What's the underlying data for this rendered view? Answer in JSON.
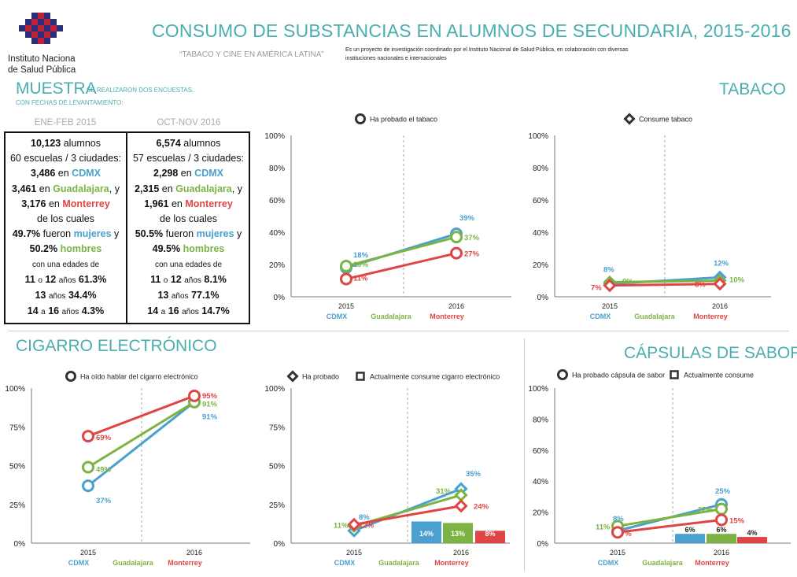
{
  "header": {
    "title": "CONSUMO DE SUBSTANCIAS EN ALUMNOS DE SECUNDARIA, 2015-2016",
    "subtitle": "“TABACO Y CINE EN AMÉRICA LATINA”",
    "about": "Es un proyecto de investigación coordinado por el Instituto Nacional de Salud Pública, en colaboración con diversas instituciones nacionales e internacionales",
    "logo_line1": "Instituto Naciona",
    "logo_line2": "de Salud Pública"
  },
  "colors": {
    "teal": "#4aaeb0",
    "cdmx": "#4aa0cf",
    "guadalajara": "#7cb342",
    "monterrey": "#e04545"
  },
  "muestra": {
    "title": "MUESTRA",
    "note1": "SE REALIZARON DOS ENCUESTAS,",
    "note2": "CON FECHAS DE LEVANTAMIENTO:",
    "period1": "ENE-FEB 2015",
    "period2": "OCT-NOV 2016",
    "col1": {
      "alumnos_n": "10,123",
      "alumnos_w": "alumnos",
      "escuelas": "60 escuelas / 3 ciudades:",
      "cdmx_n": "3,486",
      "en": "en",
      "cdmx": "CDMX",
      "gdl_n": "3,461",
      "gdl": "Guadalajara",
      "y": ", y",
      "mty_n": "3,176",
      "mty": "Monterrey",
      "de_los_cuales": "de los cuales",
      "mujeres_pct": "49.7%",
      "fueron": "fueron",
      "mujeres": "mujeres",
      "y2": "y",
      "hombres_pct": "50.2%",
      "hombres": "hombres",
      "con_edades": "con una edades de",
      "e1a": "11",
      "o": "o",
      "e1b": "12",
      "anos": "años",
      "e1pct": "61.3%",
      "e2": "13",
      "e2pct": "34.4%",
      "e3a": "14",
      "a": "a",
      "e3b": "16",
      "e3pct": "4.3%"
    },
    "col2": {
      "alumnos_n": "6,574",
      "alumnos_w": "alumnos",
      "escuelas": "57 escuelas / 3 ciudades:",
      "cdmx_n": "2,298",
      "en": "en",
      "cdmx": "CDMX",
      "gdl_n": "2,315",
      "gdl": "Guadalajara",
      "y": ", y",
      "mty_n": "1,961",
      "mty": "Monterrey",
      "de_los_cuales": "de los cuales",
      "mujeres_pct": "50.5%",
      "fueron": "fueron",
      "mujeres": "mujeres",
      "y2": "y",
      "hombres_pct": "49.5%",
      "hombres": "hombres",
      "con_edades": "con una edades de",
      "e1a": "11",
      "o": "o",
      "e1b": "12",
      "anos": "años",
      "e1pct": "8.1%",
      "e2": "13",
      "e2pct": "77.1%",
      "e3a": "14",
      "a": "a",
      "e3b": "16",
      "e3pct": "14.7%"
    }
  },
  "sections": {
    "tabaco": "TABACO",
    "cigarro": "CIGARRO ELECTRÓNICO",
    "capsulas": "CÁPSULAS  DE SABOR"
  },
  "chart_data": [
    {
      "type": "line",
      "id": "tabaco_probado",
      "legend": [
        {
          "marker": "circle",
          "label": "Ha probado el tabaco"
        }
      ],
      "categories": [
        "2015",
        "2016"
      ],
      "city_labels": [
        "CDMX",
        "Guadalajara",
        "Monterrey"
      ],
      "yticks": [
        "0%",
        "20%",
        "40%",
        "60%",
        "80%",
        "100%"
      ],
      "ylim": [
        0,
        100
      ],
      "series": [
        {
          "city": "cdmx",
          "values": [
            18,
            39
          ],
          "labels": [
            "18%",
            "39%"
          ]
        },
        {
          "city": "guadalajara",
          "values": [
            19,
            37
          ],
          "labels": [
            "19%",
            "37%"
          ]
        },
        {
          "city": "monterrey",
          "values": [
            11,
            27
          ],
          "labels": [
            "11%",
            "27%"
          ]
        }
      ]
    },
    {
      "type": "line",
      "id": "tabaco_consume",
      "legend": [
        {
          "marker": "diamond",
          "label": "Consume tabaco"
        }
      ],
      "categories": [
        "2015",
        "2016"
      ],
      "city_labels": [
        "CDMX",
        "Guadalajara",
        "Monterrey"
      ],
      "yticks": [
        "0%",
        "20%",
        "40%",
        "60%",
        "80%",
        "100%"
      ],
      "ylim": [
        0,
        100
      ],
      "series": [
        {
          "city": "cdmx",
          "values": [
            8,
            12
          ],
          "labels": [
            "8%",
            "12%"
          ]
        },
        {
          "city": "guadalajara",
          "values": [
            9,
            10
          ],
          "labels": [
            "9%",
            "10%"
          ]
        },
        {
          "city": "monterrey",
          "values": [
            7,
            8
          ],
          "labels": [
            "7%",
            "8%"
          ]
        }
      ]
    },
    {
      "type": "line",
      "id": "cigarro_oido",
      "legend": [
        {
          "marker": "circle",
          "label": "Ha oído hablar del cigarro electrónico"
        }
      ],
      "categories": [
        "2015",
        "2016"
      ],
      "city_labels": [
        "CDMX",
        "Guadalajara",
        "Monterrey"
      ],
      "yticks": [
        "0%",
        "25%",
        "50%",
        "75%",
        "100%"
      ],
      "ylim": [
        0,
        100
      ],
      "series": [
        {
          "city": "cdmx",
          "values": [
            37,
            91
          ],
          "labels": [
            "37%",
            "91%"
          ]
        },
        {
          "city": "guadalajara",
          "values": [
            49,
            91
          ],
          "labels": [
            "49%",
            "91%"
          ]
        },
        {
          "city": "monterrey",
          "values": [
            69,
            95
          ],
          "labels": [
            "69%",
            "95%"
          ]
        }
      ]
    },
    {
      "type": "line+bar",
      "id": "cigarro_probado",
      "legend": [
        {
          "marker": "diamond",
          "label": "Ha probado"
        },
        {
          "marker": "square",
          "label": "Actualmente consume cigarro electrónico"
        }
      ],
      "categories": [
        "2015",
        "2016"
      ],
      "city_labels": [
        "CDMX",
        "Guadalajara",
        "Monterrey"
      ],
      "yticks": [
        "0%",
        "25%",
        "50%",
        "75%",
        "100%"
      ],
      "ylim": [
        0,
        100
      ],
      "series": [
        {
          "city": "cdmx",
          "values": [
            8,
            35
          ],
          "labels": [
            "8%",
            "35%"
          ]
        },
        {
          "city": "guadalajara",
          "values": [
            11,
            31
          ],
          "labels": [
            "11%",
            "31%"
          ]
        },
        {
          "city": "monterrey",
          "values": [
            12,
            24
          ],
          "labels": [
            "12%",
            "24%"
          ]
        }
      ],
      "bars": [
        {
          "city": "cdmx",
          "value": 14,
          "label": "14%"
        },
        {
          "city": "guadalajara",
          "value": 13,
          "label": "13%"
        },
        {
          "city": "monterrey",
          "value": 8,
          "label": "8%"
        }
      ]
    },
    {
      "type": "line+bar",
      "id": "capsulas",
      "legend": [
        {
          "marker": "circle",
          "label": "Ha probado cápsula de sabor"
        },
        {
          "marker": "square",
          "label": "Actualmente consume"
        }
      ],
      "categories": [
        "2015",
        "2016"
      ],
      "city_labels": [
        "CDMX",
        "Guadalajara",
        "Monterrey"
      ],
      "yticks": [
        "0%",
        "20%",
        "40%",
        "60%",
        "80%",
        "100%"
      ],
      "ylim": [
        0,
        100
      ],
      "series": [
        {
          "city": "cdmx",
          "values": [
            8,
            25
          ],
          "labels": [
            "8%",
            "25%"
          ]
        },
        {
          "city": "guadalajara",
          "values": [
            11,
            22
          ],
          "labels": [
            "11%",
            "22%"
          ]
        },
        {
          "city": "monterrey",
          "values": [
            7,
            15
          ],
          "labels": [
            "7%",
            "15%"
          ]
        }
      ],
      "bars": [
        {
          "city": "cdmx",
          "value": 6,
          "label": "6%"
        },
        {
          "city": "guadalajara",
          "value": 6,
          "label": "6%"
        },
        {
          "city": "monterrey",
          "value": 4,
          "label": "4%"
        }
      ]
    }
  ]
}
